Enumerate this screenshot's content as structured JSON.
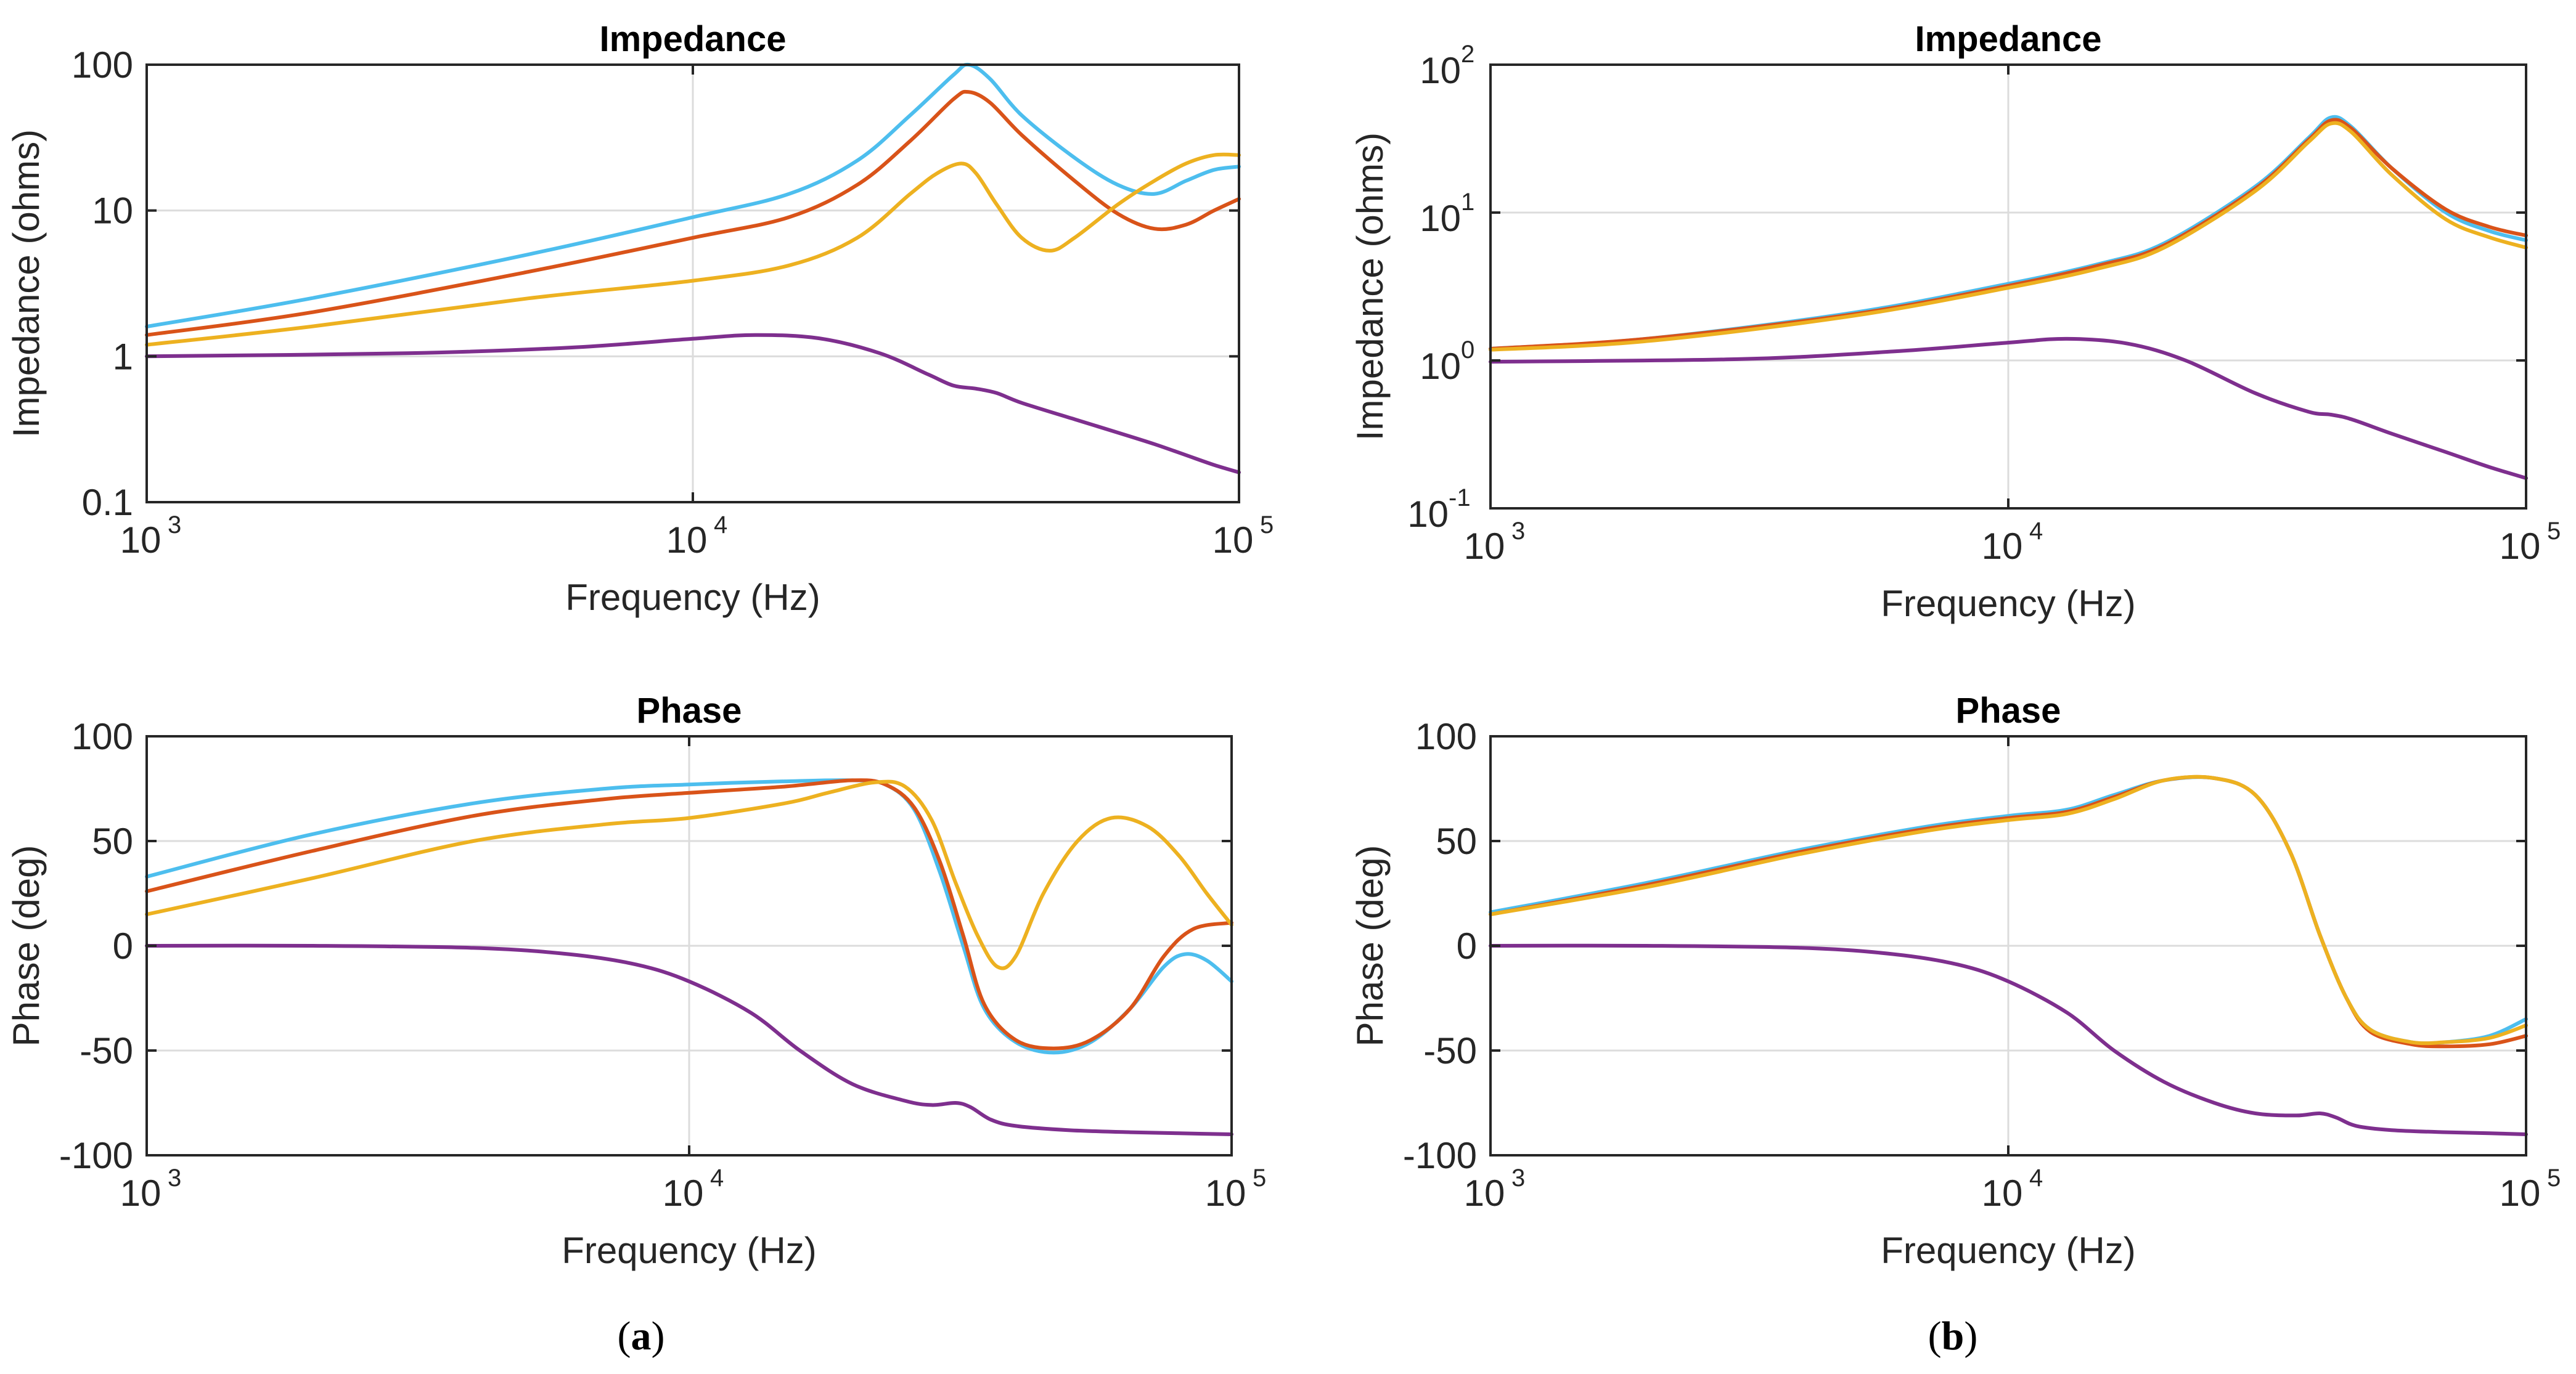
{
  "colors": {
    "blue": "#4DBEEE",
    "red": "#D95319",
    "yellow": "#EDB120",
    "purple": "#7E2F8E"
  },
  "panel_labels": [
    "(a)",
    "(b)"
  ],
  "chart_data": [
    {
      "id": "a-impedance",
      "type": "line",
      "title": "Impedance",
      "xlabel": "Frequency (Hz)",
      "ylabel": "Impedance (ohms)",
      "xscale": "log",
      "yscale": "log",
      "xlim": [
        1000,
        100000
      ],
      "ylim": [
        0.1,
        100
      ],
      "xticks": [
        {
          "v": 1000,
          "base": "10",
          "exp": "3"
        },
        {
          "v": 10000,
          "base": "10",
          "exp": "4"
        },
        {
          "v": 100000,
          "base": "10",
          "exp": "5"
        }
      ],
      "yticks": [
        {
          "v": 0.1,
          "label": "0.1"
        },
        {
          "v": 1,
          "label": "1"
        },
        {
          "v": 10,
          "label": "10"
        },
        {
          "v": 100,
          "label": "100"
        }
      ],
      "grid": true,
      "series": [
        {
          "name": "blue",
          "color": "#4DBEEE",
          "x": [
            1000,
            2000,
            5000,
            10000,
            15000,
            20000,
            25000,
            30000,
            32000,
            35000,
            40000,
            50000,
            60000,
            70000,
            80000,
            90000,
            100000
          ],
          "y": [
            1.6,
            2.5,
            5,
            9,
            13,
            22,
            45,
            85,
            100,
            80,
            45,
            23,
            15,
            13,
            16,
            19,
            20
          ]
        },
        {
          "name": "red",
          "color": "#D95319",
          "x": [
            1000,
            2000,
            5000,
            10000,
            15000,
            20000,
            25000,
            30000,
            32000,
            35000,
            40000,
            50000,
            60000,
            70000,
            80000,
            90000,
            100000
          ],
          "y": [
            1.4,
            2,
            3.8,
            6.5,
            9,
            15,
            30,
            58,
            65,
            55,
            33,
            16,
            9.5,
            7.5,
            8,
            10,
            12
          ]
        },
        {
          "name": "yellow",
          "color": "#EDB120",
          "x": [
            1000,
            2000,
            5000,
            10000,
            15000,
            20000,
            25000,
            28000,
            31000,
            33000,
            36000,
            40000,
            45000,
            50000,
            60000,
            70000,
            80000,
            90000,
            100000
          ],
          "y": [
            1.2,
            1.6,
            2.5,
            3.3,
            4.2,
            6.5,
            13,
            18,
            21,
            18,
            11,
            6.5,
            5.3,
            6.5,
            11,
            16,
            21,
            24,
            24
          ]
        },
        {
          "name": "purple",
          "color": "#7E2F8E",
          "x": [
            1000,
            3000,
            6000,
            10000,
            13000,
            17000,
            22000,
            27000,
            30000,
            33000,
            36000,
            40000,
            50000,
            60000,
            70000,
            80000,
            90000,
            100000
          ],
          "y": [
            1.0,
            1.05,
            1.15,
            1.32,
            1.4,
            1.33,
            1.05,
            0.75,
            0.63,
            0.6,
            0.56,
            0.48,
            0.37,
            0.3,
            0.25,
            0.21,
            0.18,
            0.16
          ]
        }
      ]
    },
    {
      "id": "b-impedance",
      "type": "line",
      "title": "Impedance",
      "xlabel": "Frequency (Hz)",
      "ylabel": "Impedance (ohms)",
      "xscale": "log",
      "yscale": "log",
      "xlim": [
        1000,
        100000
      ],
      "ylim": [
        0.1,
        100
      ],
      "xticks": [
        {
          "v": 1000,
          "base": "10",
          "exp": "3"
        },
        {
          "v": 10000,
          "base": "10",
          "exp": "4"
        },
        {
          "v": 100000,
          "base": "10",
          "exp": "5"
        }
      ],
      "yticks": [
        {
          "v": 0.1,
          "base": "10",
          "exp": "-1"
        },
        {
          "v": 1,
          "base": "10",
          "exp": "0"
        },
        {
          "v": 10,
          "base": "10",
          "exp": "1"
        },
        {
          "v": 100,
          "base": "10",
          "exp": "2"
        }
      ],
      "grid": true,
      "series": [
        {
          "name": "blue",
          "color": "#4DBEEE",
          "x": [
            1000,
            2000,
            5000,
            10000,
            15000,
            20000,
            30000,
            38000,
            42000,
            46000,
            55000,
            70000,
            85000,
            100000
          ],
          "y": [
            1.2,
            1.4,
            2.1,
            3.3,
            4.5,
            6.2,
            15,
            32,
            44,
            38,
            20,
            10,
            7.5,
            6.5
          ]
        },
        {
          "name": "red",
          "color": "#D95319",
          "x": [
            1000,
            2000,
            5000,
            10000,
            15000,
            20000,
            30000,
            38000,
            42000,
            46000,
            55000,
            70000,
            85000,
            100000
          ],
          "y": [
            1.2,
            1.4,
            2.05,
            3.2,
            4.4,
            6.0,
            14.5,
            31,
            42,
            37,
            20,
            10.5,
            8,
            7
          ]
        },
        {
          "name": "yellow",
          "color": "#EDB120",
          "x": [
            1000,
            2000,
            5000,
            10000,
            15000,
            20000,
            30000,
            38000,
            42000,
            46000,
            55000,
            70000,
            85000,
            100000
          ],
          "y": [
            1.18,
            1.35,
            2.0,
            3.1,
            4.2,
            5.8,
            14,
            30,
            40,
            35,
            18,
            9,
            6.8,
            5.8
          ]
        },
        {
          "name": "purple",
          "color": "#7E2F8E",
          "x": [
            1000,
            3000,
            6000,
            10000,
            13000,
            17000,
            22000,
            30000,
            38000,
            42000,
            46000,
            55000,
            70000,
            85000,
            100000
          ],
          "y": [
            0.98,
            1.02,
            1.15,
            1.32,
            1.4,
            1.3,
            1.0,
            0.6,
            0.45,
            0.43,
            0.4,
            0.32,
            0.24,
            0.19,
            0.16
          ]
        }
      ]
    },
    {
      "id": "a-phase",
      "type": "line",
      "title": "Phase",
      "xlabel": "Frequency (Hz)",
      "ylabel": "Phase (deg)",
      "xscale": "log",
      "yscale": "linear",
      "xlim": [
        1000,
        100000
      ],
      "ylim": [
        -100,
        100
      ],
      "xticks": [
        {
          "v": 1000,
          "base": "10",
          "exp": "3"
        },
        {
          "v": 10000,
          "base": "10",
          "exp": "4"
        },
        {
          "v": 100000,
          "base": "10",
          "exp": "5"
        }
      ],
      "yticks": [
        {
          "v": -100,
          "label": "-100"
        },
        {
          "v": -50,
          "label": "-50"
        },
        {
          "v": 0,
          "label": "0"
        },
        {
          "v": 50,
          "label": "50"
        },
        {
          "v": 100,
          "label": "100"
        }
      ],
      "grid": true,
      "series": [
        {
          "name": "blue",
          "color": "#4DBEEE",
          "x": [
            1000,
            2000,
            4000,
            7000,
            10000,
            15000,
            20000,
            23000,
            26000,
            29000,
            32000,
            35000,
            40000,
            47000,
            55000,
            65000,
            75000,
            82000,
            90000,
            100000
          ],
          "y": [
            33,
            53,
            68,
            75,
            77,
            78.5,
            79,
            77,
            65,
            35,
            0,
            -30,
            -46,
            -51,
            -46,
            -30,
            -10,
            -4,
            -7,
            -17
          ]
        },
        {
          "name": "red",
          "color": "#D95319",
          "x": [
            1000,
            2000,
            4000,
            7000,
            10000,
            15000,
            20000,
            23000,
            26000,
            29000,
            32000,
            35000,
            40000,
            47000,
            55000,
            65000,
            75000,
            85000,
            100000
          ],
          "y": [
            26,
            45,
            62,
            70,
            73,
            76,
            79,
            77,
            66,
            40,
            5,
            -28,
            -45,
            -49,
            -45,
            -30,
            -5,
            8,
            11
          ]
        },
        {
          "name": "yellow",
          "color": "#EDB120",
          "x": [
            1000,
            2000,
            4000,
            7000,
            10000,
            15000,
            18000,
            22000,
            25000,
            28000,
            31000,
            34000,
            37000,
            40000,
            45000,
            52000,
            60000,
            70000,
            80000,
            90000,
            100000
          ],
          "y": [
            15,
            32,
            50,
            58,
            61,
            68,
            73,
            78,
            76,
            60,
            30,
            5,
            -10,
            -5,
            25,
            50,
            61,
            57,
            43,
            25,
            10
          ]
        },
        {
          "name": "purple",
          "color": "#7E2F8E",
          "x": [
            1000,
            2000,
            4000,
            6000,
            8000,
            10000,
            13000,
            16000,
            20000,
            25000,
            28000,
            31000,
            33000,
            36000,
            40000,
            50000,
            65000,
            80000,
            100000
          ],
          "y": [
            0,
            0,
            -1,
            -4,
            -9,
            -17,
            -32,
            -50,
            -66,
            -74,
            -76,
            -75,
            -77,
            -83,
            -86,
            -88,
            -89,
            -89.5,
            -90
          ]
        }
      ]
    },
    {
      "id": "b-phase",
      "type": "line",
      "title": "Phase",
      "xlabel": "Frequency (Hz)",
      "ylabel": "Phase (deg)",
      "xscale": "log",
      "yscale": "linear",
      "xlim": [
        1000,
        100000
      ],
      "ylim": [
        -100,
        100
      ],
      "xticks": [
        {
          "v": 1000,
          "base": "10",
          "exp": "3"
        },
        {
          "v": 10000,
          "base": "10",
          "exp": "4"
        },
        {
          "v": 100000,
          "base": "10",
          "exp": "5"
        }
      ],
      "yticks": [
        {
          "v": -100,
          "label": "-100"
        },
        {
          "v": -50,
          "label": "-50"
        },
        {
          "v": 0,
          "label": "0"
        },
        {
          "v": 50,
          "label": "50"
        },
        {
          "v": 100,
          "label": "100"
        }
      ],
      "grid": true,
      "series": [
        {
          "name": "blue",
          "color": "#4DBEEE",
          "x": [
            1000,
            2000,
            4000,
            7000,
            10000,
            13000,
            16000,
            20000,
            25000,
            30000,
            35000,
            40000,
            45000,
            50000,
            60000,
            70000,
            85000,
            100000
          ],
          "y": [
            16,
            30,
            46,
            57,
            62,
            65,
            72,
            79,
            80,
            72,
            45,
            5,
            -25,
            -40,
            -46,
            -46,
            -43,
            -35
          ]
        },
        {
          "name": "red",
          "color": "#D95319",
          "x": [
            1000,
            2000,
            4000,
            7000,
            10000,
            13000,
            16000,
            20000,
            25000,
            30000,
            35000,
            40000,
            45000,
            50000,
            60000,
            70000,
            85000,
            100000
          ],
          "y": [
            15,
            29,
            45,
            56,
            61,
            64,
            71,
            79,
            80,
            72,
            45,
            5,
            -25,
            -41,
            -47,
            -48,
            -47,
            -43
          ]
        },
        {
          "name": "yellow",
          "color": "#EDB120",
          "x": [
            1000,
            2000,
            4000,
            7000,
            10000,
            13000,
            16000,
            20000,
            25000,
            30000,
            35000,
            40000,
            45000,
            50000,
            60000,
            70000,
            85000,
            100000
          ],
          "y": [
            15,
            28,
            44,
            55,
            60,
            63,
            70,
            79,
            80,
            72,
            45,
            5,
            -25,
            -40,
            -46,
            -46,
            -44,
            -38
          ]
        },
        {
          "name": "purple",
          "color": "#7E2F8E",
          "x": [
            1000,
            2000,
            4000,
            6000,
            8000,
            10000,
            13000,
            16000,
            20000,
            25000,
            30000,
            36000,
            40000,
            43000,
            47000,
            55000,
            70000,
            85000,
            100000
          ],
          "y": [
            0,
            0,
            -1,
            -4,
            -9,
            -17,
            -32,
            -50,
            -65,
            -75,
            -80,
            -81,
            -80,
            -82,
            -86,
            -88,
            -89,
            -89.5,
            -90
          ]
        }
      ]
    }
  ]
}
